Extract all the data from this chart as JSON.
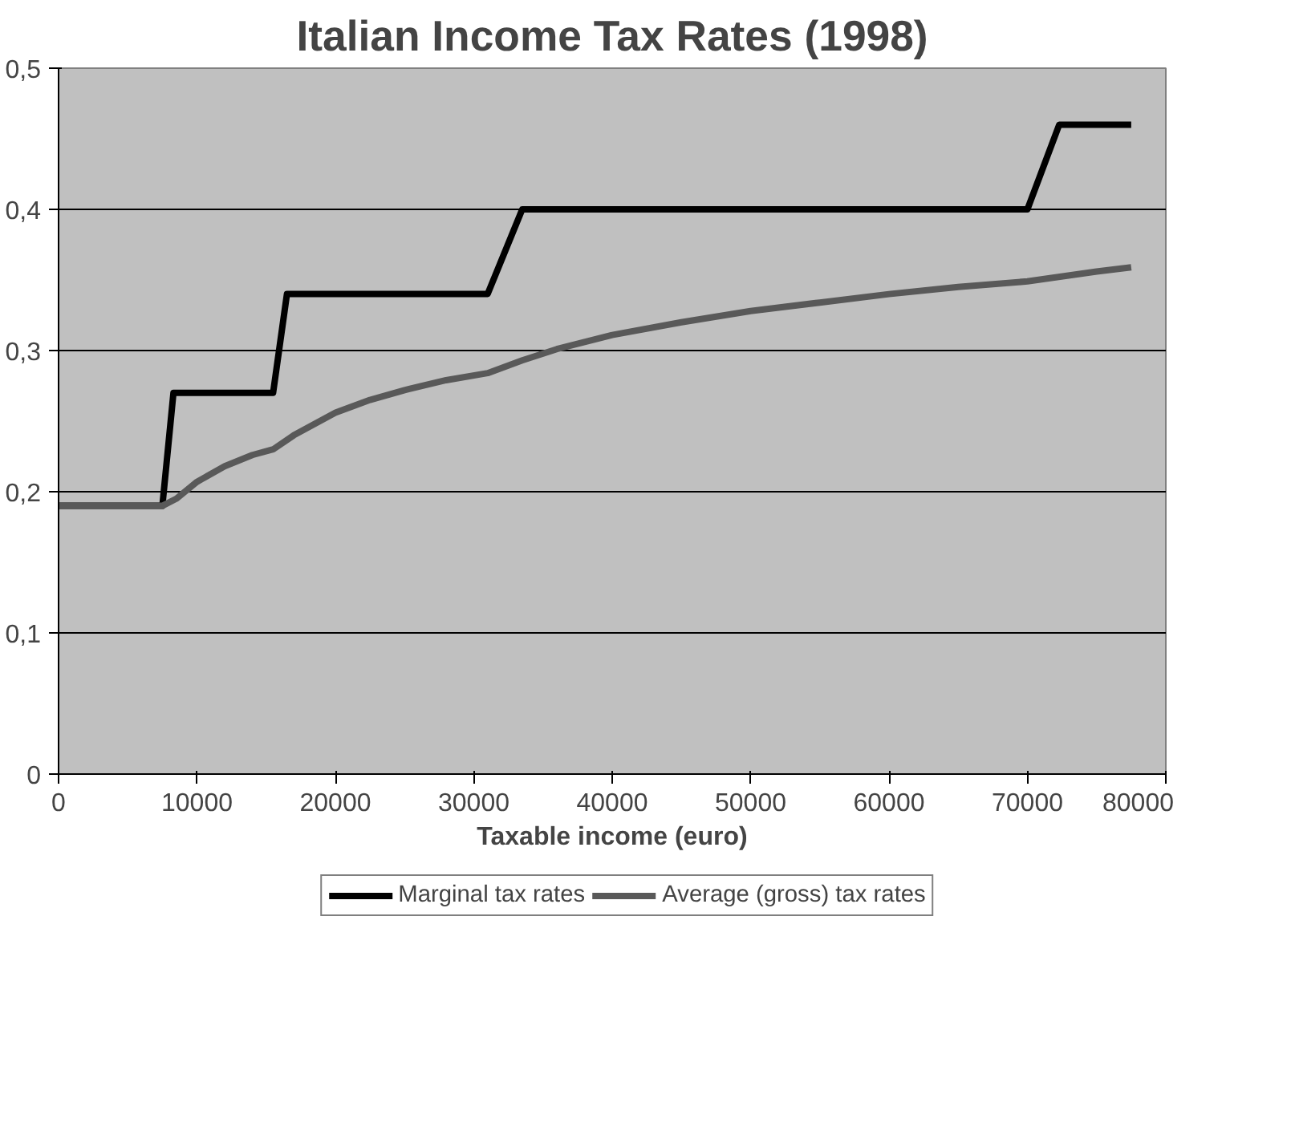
{
  "chart_data": {
    "type": "line",
    "title": "Italian Income Tax Rates (1998)",
    "xlabel": "Taxable income (euro)",
    "xlim": [
      0,
      80000
    ],
    "xticks": [
      0,
      10000,
      20000,
      30000,
      40000,
      50000,
      60000,
      70000,
      80000
    ],
    "ylim": [
      0,
      0.5
    ],
    "yticks": [
      0,
      {
        "value": 0.1,
        "label": "0,1"
      },
      {
        "value": 0.2,
        "label": "0,2"
      },
      {
        "value": 0.3,
        "label": "0,3"
      },
      {
        "value": 0.4,
        "label": "0,4"
      },
      {
        "value": 0.5,
        "label": "0,5"
      }
    ],
    "grid": "y",
    "legend": "bottom",
    "marker": "none",
    "line_style": "solid",
    "series": [
      {
        "name": "Marginal tax rates",
        "color": "#000000",
        "x": [
          0,
          7500,
          8300,
          15500,
          16500,
          31000,
          33500,
          70000,
          72300,
          77500
        ],
        "values": [
          0.19,
          0.19,
          0.27,
          0.27,
          0.34,
          0.34,
          0.4,
          0.4,
          0.46,
          0.46
        ]
      },
      {
        "name": "Average (gross) tax rates",
        "color": "#595959",
        "x": [
          0,
          7500,
          8500,
          10000,
          12000,
          14000,
          15500,
          17000,
          18500,
          20000,
          22500,
          25000,
          28000,
          31000,
          33500,
          36000,
          40000,
          45000,
          50000,
          55000,
          60000,
          65000,
          70000,
          75000,
          77500
        ],
        "values": [
          0.19,
          0.19,
          0.195,
          0.207,
          0.218,
          0.226,
          0.23,
          0.24,
          0.248,
          0.256,
          0.265,
          0.272,
          0.279,
          0.284,
          0.293,
          0.301,
          0.311,
          0.32,
          0.328,
          0.334,
          0.34,
          0.345,
          0.349,
          0.356,
          0.359
        ]
      }
    ]
  }
}
